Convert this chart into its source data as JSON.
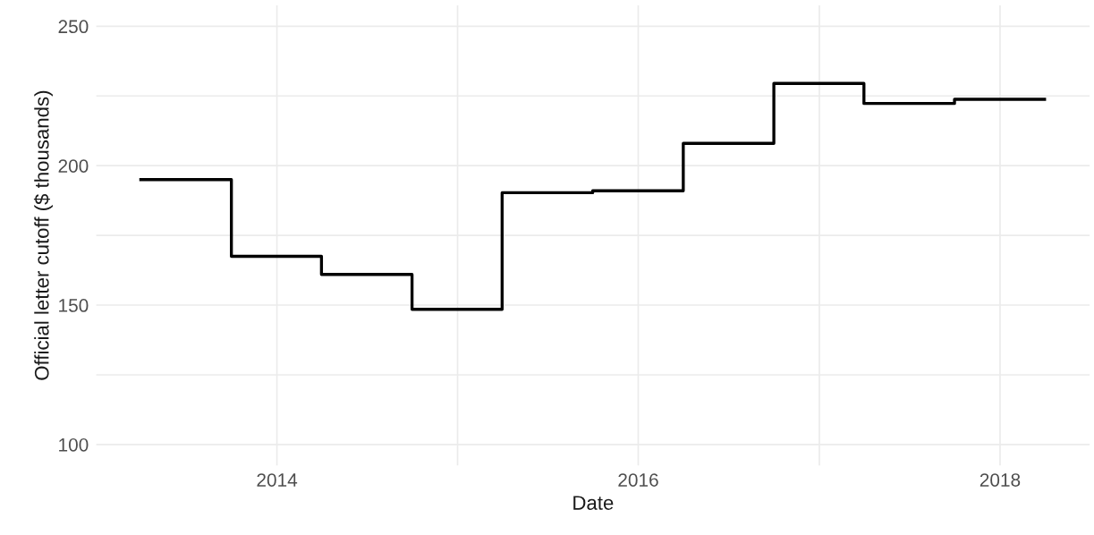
{
  "chart_data": {
    "type": "step",
    "xlabel": "Date",
    "ylabel": "Official letter cutoff ($ thousands)",
    "x": [
      "2013-04-01",
      "2013-10-01",
      "2014-04-01",
      "2014-10-01",
      "2015-04-01",
      "2015-10-01",
      "2016-04-01",
      "2016-10-01",
      "2017-04-01",
      "2017-10-01",
      "2018-04-01"
    ],
    "series": [
      {
        "color": "#000000",
        "values": [
          195,
          167.5,
          161,
          148.5,
          190.3,
          191,
          208,
          229.5,
          222.3,
          223.8,
          223.8
        ]
      }
    ],
    "xlim": [
      "2013-01-01",
      "2018-07-01"
    ],
    "xticks": [
      {
        "value": "2014-01-01",
        "label": "2014"
      },
      {
        "value": "2015-01-01",
        "label": null
      },
      {
        "value": "2016-01-01",
        "label": "2016"
      },
      {
        "value": "2017-01-01",
        "label": null
      },
      {
        "value": "2018-01-01",
        "label": "2018"
      }
    ],
    "ylim": [
      92.5,
      257.5
    ],
    "yticks": [
      100,
      {
        "value": 125,
        "label": null
      },
      150,
      {
        "value": 175,
        "label": null
      },
      200,
      {
        "value": 225,
        "label": null
      },
      250
    ],
    "grid": true,
    "legend": false,
    "line_style": "solid",
    "marker": "none"
  }
}
